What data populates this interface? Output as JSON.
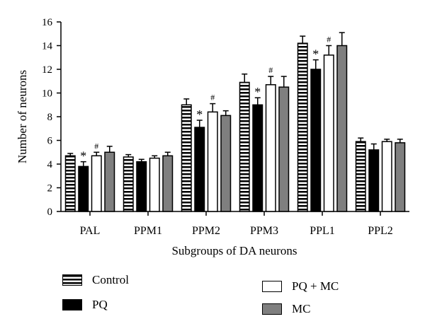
{
  "chart_data": {
    "type": "bar",
    "xlabel": "Subgroups of DA neurons",
    "ylabel": "Number of neurons",
    "ylim": [
      0,
      16
    ],
    "yticks": [
      "0",
      "2",
      "4",
      "6",
      "8",
      "10",
      "12",
      "14",
      "16"
    ],
    "categories": [
      "PAL",
      "PPM1",
      "PPM2",
      "PPM3",
      "PPL1",
      "PPL2"
    ],
    "series": [
      {
        "name": "Control",
        "color": "#000000",
        "pattern": "horizontal-stripes",
        "values": [
          4.7,
          4.6,
          9.0,
          10.9,
          14.2,
          5.9
        ],
        "errors": [
          0.2,
          0.2,
          0.5,
          0.7,
          0.6,
          0.3
        ]
      },
      {
        "name": "PQ",
        "color": "#000000",
        "values": [
          3.8,
          4.2,
          7.1,
          9.0,
          12.0,
          5.2
        ],
        "errors": [
          0.4,
          0.2,
          0.6,
          0.6,
          0.8,
          0.5
        ]
      },
      {
        "name": "PQ + MC",
        "color": "#ffffff",
        "values": [
          4.7,
          4.5,
          8.4,
          10.7,
          13.2,
          5.9
        ],
        "errors": [
          0.3,
          0.2,
          0.7,
          0.7,
          0.8,
          0.2
        ]
      },
      {
        "name": "MC",
        "color": "#7f7f7f",
        "values": [
          5.0,
          4.7,
          8.1,
          10.5,
          14.0,
          5.8
        ],
        "errors": [
          0.5,
          0.3,
          0.4,
          0.9,
          1.1,
          0.3
        ]
      }
    ],
    "annotations": [
      {
        "category": "PAL",
        "series": "PQ",
        "text": "*"
      },
      {
        "category": "PAL",
        "series": "PQ + MC",
        "text": "#"
      },
      {
        "category": "PPM2",
        "series": "PQ",
        "text": "*"
      },
      {
        "category": "PPM2",
        "series": "PQ + MC",
        "text": "#"
      },
      {
        "category": "PPM3",
        "series": "PQ",
        "text": "*"
      },
      {
        "category": "PPM3",
        "series": "PQ + MC",
        "text": "#"
      },
      {
        "category": "PPL1",
        "series": "PQ",
        "text": "*"
      },
      {
        "category": "PPL1",
        "series": "PQ + MC",
        "text": "#"
      }
    ],
    "grid": false,
    "legend_position": "bottom"
  },
  "legend": {
    "control": "Control",
    "pq": "PQ",
    "pqmc": "PQ + MC",
    "mc": "MC"
  }
}
